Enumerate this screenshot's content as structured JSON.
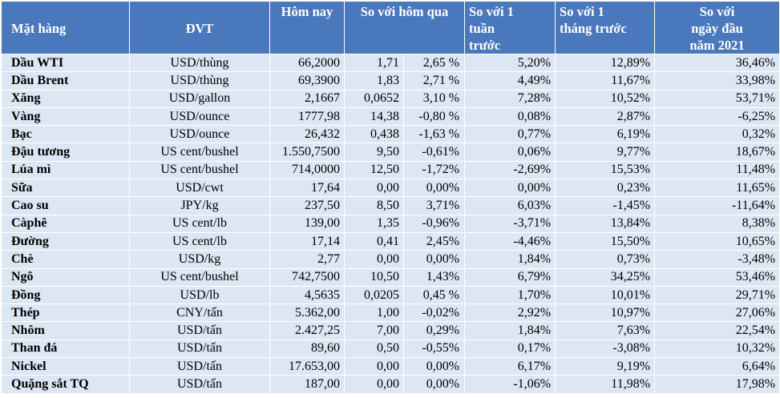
{
  "headers": {
    "item": "Mặt hàng",
    "unit": "ĐVT",
    "today": "Hôm nay",
    "vs_yesterday": "So với hôm qua",
    "vs_week": [
      "So với 1",
      "tuần",
      "trước"
    ],
    "vs_month": [
      "So với 1",
      "tháng trước"
    ],
    "vs_year": [
      "So với",
      "ngày đầu",
      "năm 2021"
    ]
  },
  "rows": [
    {
      "name": "Dầu WTI",
      "unit": "USD/thùng",
      "today": "66,2000",
      "chg": "1,71",
      "chg_pct": "2,65 %",
      "week": "5,20%",
      "month": "12,89%",
      "ytd": "36,46%"
    },
    {
      "name": "Dầu Brent",
      "unit": "USD/thùng",
      "today": "69,3900",
      "chg": "1,83",
      "chg_pct": "2,71 %",
      "week": "4,49%",
      "month": "11,67%",
      "ytd": "33,98%"
    },
    {
      "name": "Xăng",
      "unit": "USD/gallon",
      "today": "2,1667",
      "chg": "0,0652",
      "chg_pct": "3,10 %",
      "week": "7,28%",
      "month": "10,52%",
      "ytd": "53,71%"
    },
    {
      "name": "Vàng",
      "unit": "USD/ounce",
      "today": "1777,98",
      "chg": "14,38",
      "chg_pct": "-0,80 %",
      "week": "0,08%",
      "month": "2,87%",
      "ytd": "-6,25%"
    },
    {
      "name": "Bạc",
      "unit": "USD/ounce",
      "today": "26,432",
      "chg": "0,438",
      "chg_pct": "-1,63 %",
      "week": "0,77%",
      "month": "6,19%",
      "ytd": "0,32%"
    },
    {
      "name": "Đậu tương",
      "unit": "US cent/bushel",
      "today": "1.550,7500",
      "chg": "9,50",
      "chg_pct": "-0,61%",
      "week": "0,06%",
      "month": "9,77%",
      "ytd": "18,67%"
    },
    {
      "name": "Lúa mì",
      "unit": "US cent/bushel",
      "today": "714,0000",
      "chg": "12,50",
      "chg_pct": "-1,72%",
      "week": "-2,69%",
      "month": "15,53%",
      "ytd": "11,48%"
    },
    {
      "name": "Sữa",
      "unit": "USD/cwt",
      "today": "17,64",
      "chg": "0,00",
      "chg_pct": "0,00%",
      "week": "0,00%",
      "month": "0,23%",
      "ytd": "11,65%"
    },
    {
      "name": "Cao su",
      "unit": "JPY/kg",
      "today": "237,50",
      "chg": "8,50",
      "chg_pct": "3,71%",
      "week": "6,03%",
      "month": "-1,45%",
      "ytd": "-11,64%"
    },
    {
      "name": "Càphê",
      "unit": "US cent/lb",
      "today": "139,00",
      "chg": "1,35",
      "chg_pct": "-0,96%",
      "week": "-3,71%",
      "month": "13,84%",
      "ytd": "8,38%"
    },
    {
      "name": "Đường",
      "unit": "US cent/lb",
      "today": "17,14",
      "chg": "0,41",
      "chg_pct": "2,45%",
      "week": "-4,46%",
      "month": "15,50%",
      "ytd": "10,65%"
    },
    {
      "name": "Chè",
      "unit": "USD/kg",
      "today": "2,77",
      "chg": "0,00",
      "chg_pct": "0,00%",
      "week": "1,84%",
      "month": "0,73%",
      "ytd": "-3,48%"
    },
    {
      "name": "Ngô",
      "unit": "US cent/bushel",
      "today": "742,7500",
      "chg": "10,50",
      "chg_pct": "1,43%",
      "week": "6,79%",
      "month": "34,25%",
      "ytd": "53,46%"
    },
    {
      "name": "Đồng",
      "unit": "USD/lb",
      "today": "4,5635",
      "chg": "0,0205",
      "chg_pct": "0,45 %",
      "week": "1,70%",
      "month": "10,01%",
      "ytd": "29,71%"
    },
    {
      "name": "Thép",
      "unit": "CNY/tấn",
      "today": "5.362,00",
      "chg": "1,00",
      "chg_pct": "-0,02%",
      "week": "2,92%",
      "month": "10,97%",
      "ytd": "27,06%"
    },
    {
      "name": "Nhôm",
      "unit": "USD/tấn",
      "today": "2.427,25",
      "chg": "7,00",
      "chg_pct": "0,29%",
      "week": "1,84%",
      "month": "7,63%",
      "ytd": "22,54%"
    },
    {
      "name": "Than đá",
      "unit": "USD/tấn",
      "today": "89,60",
      "chg": "0,50",
      "chg_pct": "-0,55%",
      "week": "0,17%",
      "month": "-3,08%",
      "ytd": "10,32%"
    },
    {
      "name": "Nickel",
      "unit": "USD/tấn",
      "today": "17.653,00",
      "chg": "0,00",
      "chg_pct": "0,00%",
      "week": "6,17%",
      "month": "9,19%",
      "ytd": "6,64%"
    },
    {
      "name": "Quặng sắt TQ",
      "unit": "USD/tấn",
      "today": "187,00",
      "chg": "0,00",
      "chg_pct": "0,00%",
      "week": "-1,06%",
      "month": "11,98%",
      "ytd": "17,98%"
    }
  ],
  "colors": {
    "header_bg": "#4a78bc",
    "row_bg": "#dde6f3",
    "header_text": "#ffffff"
  }
}
